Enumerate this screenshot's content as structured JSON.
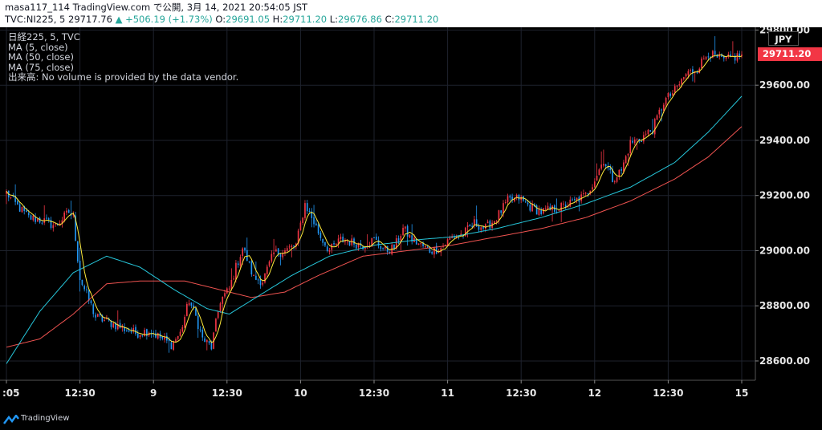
{
  "header": {
    "line1": "masa117_114 TradingView.com で公開, 3月 14, 2021 20:54:05 JST",
    "symbol": "TVC:NI225, 5",
    "last": "29717.76",
    "arrow": "▲",
    "change": "+506.19 (+1.73%)",
    "o_label": "O:",
    "o_value": "29691.05",
    "h_label": "H:",
    "h_value": "29711.20",
    "l_label": "L:",
    "l_value": "29676.86",
    "c_label": "C:",
    "c_value": "29711.20"
  },
  "legend": {
    "title": "日経225, 5, TVC",
    "ma5": "MA (5, close)",
    "ma50": "MA (50, close)",
    "ma75": "MA (75, close)",
    "volume": "出来高: No volume is provided by the data vendor."
  },
  "price_badge": "29711.20",
  "currency": "JPY",
  "footer": {
    "brand": "TradingView"
  },
  "colors": {
    "up": "#f23645",
    "down": "#2196f3",
    "ma5": "#ffeb3b",
    "ma50": "#26c6da",
    "ma75": "#ef5350",
    "background": "#000000",
    "grid": "#1e222d"
  },
  "chart_data": {
    "type": "line",
    "title": "日経225, 5, TVC",
    "y_ticks": [
      28600,
      28800,
      29000,
      29200,
      29400,
      29600,
      29800
    ],
    "y_tick_labels": [
      "28600.00",
      "28800.00",
      "29000.00",
      "29200.00",
      "29400.00",
      "29600.00",
      "29800.00"
    ],
    "ylim": [
      28530,
      29810
    ],
    "x_ticks": [
      {
        "label": ":05",
        "idx": 0
      },
      {
        "label": "12:30",
        "idx": 33
      },
      {
        "label": "9",
        "idx": 66
      },
      {
        "label": "12:30",
        "idx": 99
      },
      {
        "label": "10",
        "idx": 132
      },
      {
        "label": "12:30",
        "idx": 165
      },
      {
        "label": "11",
        "idx": 198
      },
      {
        "label": "12:30",
        "idx": 231
      },
      {
        "label": "12",
        "idx": 264
      },
      {
        "label": "12:30",
        "idx": 297
      },
      {
        "label": "15",
        "idx": 330
      }
    ],
    "n_bars": 331,
    "close_anchors": [
      [
        0,
        29210
      ],
      [
        4,
        29170
      ],
      [
        10,
        29120
      ],
      [
        16,
        29110
      ],
      [
        22,
        29090
      ],
      [
        28,
        29140
      ],
      [
        30,
        29120
      ],
      [
        33,
        28900
      ],
      [
        36,
        28840
      ],
      [
        40,
        28760
      ],
      [
        46,
        28740
      ],
      [
        52,
        28720
      ],
      [
        58,
        28700
      ],
      [
        64,
        28710
      ],
      [
        70,
        28680
      ],
      [
        74,
        28660
      ],
      [
        78,
        28700
      ],
      [
        82,
        28820
      ],
      [
        85,
        28760
      ],
      [
        88,
        28680
      ],
      [
        92,
        28650
      ],
      [
        96,
        28820
      ],
      [
        100,
        28860
      ],
      [
        103,
        28940
      ],
      [
        106,
        29010
      ],
      [
        108,
        28970
      ],
      [
        111,
        28900
      ],
      [
        115,
        28890
      ],
      [
        120,
        28990
      ],
      [
        125,
        29000
      ],
      [
        130,
        29020
      ],
      [
        134,
        29170
      ],
      [
        137,
        29120
      ],
      [
        141,
        29050
      ],
      [
        145,
        29000
      ],
      [
        150,
        29040
      ],
      [
        155,
        29030
      ],
      [
        160,
        29020
      ],
      [
        165,
        29040
      ],
      [
        170,
        29000
      ],
      [
        174,
        29010
      ],
      [
        178,
        29080
      ],
      [
        182,
        29040
      ],
      [
        186,
        29020
      ],
      [
        190,
        29000
      ],
      [
        195,
        29010
      ],
      [
        200,
        29050
      ],
      [
        205,
        29060
      ],
      [
        210,
        29100
      ],
      [
        215,
        29080
      ],
      [
        220,
        29120
      ],
      [
        225,
        29180
      ],
      [
        230,
        29190
      ],
      [
        235,
        29160
      ],
      [
        240,
        29140
      ],
      [
        245,
        29150
      ],
      [
        250,
        29160
      ],
      [
        255,
        29180
      ],
      [
        260,
        29200
      ],
      [
        264,
        29260
      ],
      [
        268,
        29330
      ],
      [
        272,
        29260
      ],
      [
        276,
        29290
      ],
      [
        280,
        29390
      ],
      [
        285,
        29410
      ],
      [
        290,
        29440
      ],
      [
        295,
        29540
      ],
      [
        300,
        29580
      ],
      [
        305,
        29640
      ],
      [
        310,
        29660
      ],
      [
        315,
        29720
      ],
      [
        318,
        29700
      ],
      [
        322,
        29690
      ],
      [
        326,
        29700
      ],
      [
        330,
        29711.2
      ]
    ],
    "ma50_anchors": [
      [
        0,
        28590
      ],
      [
        15,
        28780
      ],
      [
        30,
        28920
      ],
      [
        45,
        28980
      ],
      [
        60,
        28940
      ],
      [
        75,
        28860
      ],
      [
        90,
        28790
      ],
      [
        100,
        28770
      ],
      [
        112,
        28830
      ],
      [
        128,
        28910
      ],
      [
        145,
        28980
      ],
      [
        165,
        29020
      ],
      [
        185,
        29040
      ],
      [
        200,
        29050
      ],
      [
        220,
        29080
      ],
      [
        240,
        29120
      ],
      [
        260,
        29170
      ],
      [
        280,
        29230
      ],
      [
        300,
        29320
      ],
      [
        315,
        29430
      ],
      [
        330,
        29560
      ]
    ],
    "ma75_anchors": [
      [
        0,
        28650
      ],
      [
        15,
        28680
      ],
      [
        30,
        28770
      ],
      [
        45,
        28880
      ],
      [
        60,
        28890
      ],
      [
        80,
        28890
      ],
      [
        95,
        28860
      ],
      [
        110,
        28830
      ],
      [
        125,
        28850
      ],
      [
        140,
        28910
      ],
      [
        160,
        28980
      ],
      [
        180,
        29000
      ],
      [
        200,
        29020
      ],
      [
        220,
        29050
      ],
      [
        240,
        29080
      ],
      [
        260,
        29120
      ],
      [
        280,
        29180
      ],
      [
        300,
        29260
      ],
      [
        315,
        29340
      ],
      [
        330,
        29450
      ]
    ]
  }
}
